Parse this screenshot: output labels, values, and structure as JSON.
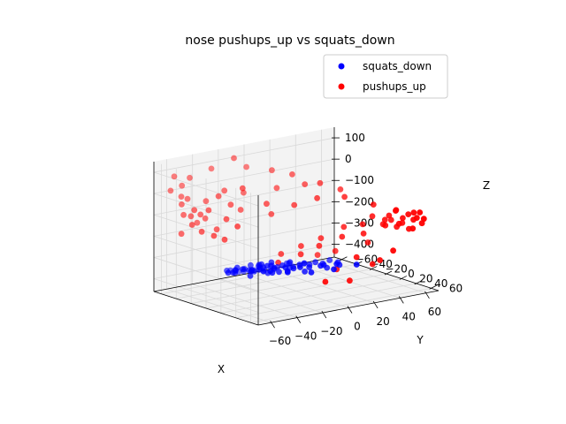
{
  "title": "nose pushups_up vs squats_down",
  "colors": {
    "squats_down": "#0000ff",
    "pushups_up": "#ff0000",
    "pane": "#f2f2f2",
    "grid": "#d9d9d9"
  },
  "chart_data": {
    "type": "scatter",
    "projection": "3d",
    "title": "nose pushups_up vs squats_down",
    "xlabel": "X",
    "ylabel": "Y",
    "zlabel": "Z",
    "xlim": [
      -70,
      70
    ],
    "ylim": [
      -70,
      70
    ],
    "zlim": [
      -460,
      150
    ],
    "xticks": [
      -60,
      -40,
      -20,
      0,
      20,
      40,
      60
    ],
    "yticks": [
      -60,
      -40,
      -20,
      0,
      20,
      40,
      60
    ],
    "zticks": [
      100,
      0,
      -100,
      -200,
      -300,
      -400
    ],
    "grid": true,
    "legend": "top-right",
    "legend_entries": [
      "squats_down",
      "pushups_up"
    ],
    "series": [
      {
        "name": "squats_down",
        "color": "#0000ff",
        "points": [
          [
            -54,
            2,
            -310
          ],
          [
            -50,
            5,
            -300
          ],
          [
            -48,
            -2,
            -320
          ],
          [
            -46,
            8,
            -295
          ],
          [
            -44,
            -6,
            -330
          ],
          [
            -42,
            12,
            -305
          ],
          [
            -40,
            -10,
            -315
          ],
          [
            -38,
            4,
            -340
          ],
          [
            -37,
            15,
            -290
          ],
          [
            -35,
            -3,
            -325
          ],
          [
            -34,
            9,
            -310
          ],
          [
            -32,
            -14,
            -335
          ],
          [
            -30,
            2,
            -300
          ],
          [
            -29,
            18,
            -320
          ],
          [
            -28,
            -8,
            -345
          ],
          [
            -26,
            6,
            -305
          ],
          [
            -25,
            -18,
            -330
          ],
          [
            -24,
            12,
            -315
          ],
          [
            -22,
            0,
            -350
          ],
          [
            -21,
            22,
            -300
          ],
          [
            -20,
            -12,
            -325
          ],
          [
            -18,
            8,
            -340
          ],
          [
            -17,
            -4,
            -310
          ],
          [
            -16,
            16,
            -330
          ],
          [
            -14,
            -20,
            -355
          ],
          [
            -13,
            4,
            -320
          ],
          [
            -12,
            26,
            -305
          ],
          [
            -10,
            -8,
            -345
          ],
          [
            -9,
            12,
            -330
          ],
          [
            -8,
            -16,
            -360
          ],
          [
            -6,
            2,
            -315
          ],
          [
            -5,
            20,
            -340
          ],
          [
            -4,
            -26,
            -365
          ],
          [
            -2,
            8,
            -325
          ],
          [
            0,
            -4,
            -350
          ],
          [
            2,
            14,
            -335
          ],
          [
            3,
            -14,
            -370
          ],
          [
            5,
            24,
            -320
          ],
          [
            6,
            -20,
            -360
          ],
          [
            8,
            4,
            -340
          ],
          [
            10,
            -30,
            -375
          ],
          [
            11,
            18,
            -330
          ],
          [
            12,
            -10,
            -355
          ],
          [
            14,
            30,
            -315
          ],
          [
            16,
            -2,
            -345
          ],
          [
            18,
            10,
            -360
          ],
          [
            20,
            -24,
            -380
          ],
          [
            22,
            20,
            -340
          ],
          [
            24,
            -6,
            -365
          ],
          [
            26,
            36,
            -325
          ],
          [
            -30,
            -30,
            -360
          ],
          [
            -20,
            -36,
            -385
          ],
          [
            -10,
            -40,
            -395
          ],
          [
            0,
            -34,
            -380
          ],
          [
            -40,
            -24,
            -345
          ],
          [
            -24,
            30,
            -310
          ],
          [
            -8,
            34,
            -325
          ],
          [
            6,
            40,
            -320
          ],
          [
            -34,
            24,
            -300
          ],
          [
            -46,
            20,
            -285
          ],
          [
            -18,
            -46,
            -400
          ],
          [
            -4,
            -44,
            -390
          ],
          [
            -28,
            -40,
            -375
          ],
          [
            30,
            4,
            -355
          ],
          [
            34,
            -14,
            -370
          ],
          [
            4,
            -50,
            -420
          ],
          [
            -44,
            32,
            -280
          ]
        ]
      },
      {
        "name": "pushups_up",
        "color": "#ff0000",
        "points": [
          [
            -64,
            -58,
            20
          ],
          [
            -60,
            -50,
            -40
          ],
          [
            -62,
            -44,
            -80
          ],
          [
            -58,
            -54,
            -10
          ],
          [
            -56,
            -40,
            -60
          ],
          [
            -54,
            -48,
            -100
          ],
          [
            -60,
            -36,
            -120
          ],
          [
            -52,
            -56,
            -30
          ],
          [
            -50,
            -42,
            -90
          ],
          [
            -48,
            -50,
            -140
          ],
          [
            -56,
            -30,
            -150
          ],
          [
            -46,
            -38,
            -70
          ],
          [
            -44,
            -46,
            -120
          ],
          [
            -50,
            -24,
            -170
          ],
          [
            -42,
            -34,
            -160
          ],
          [
            -40,
            -52,
            -50
          ],
          [
            -38,
            -28,
            -110
          ],
          [
            -36,
            -42,
            -20
          ],
          [
            -34,
            -20,
            -140
          ],
          [
            -30,
            -36,
            -60
          ],
          [
            -44,
            -20,
            -190
          ],
          [
            -28,
            -48,
            -10
          ],
          [
            -60,
            -60,
            80
          ],
          [
            -54,
            -60,
            30
          ],
          [
            -66,
            -40,
            -160
          ],
          [
            -20,
            -40,
            -100
          ],
          [
            -12,
            -50,
            -40
          ],
          [
            -2,
            -30,
            -130
          ],
          [
            10,
            -20,
            -90
          ],
          [
            22,
            -10,
            -60
          ],
          [
            34,
            6,
            -50
          ],
          [
            46,
            24,
            -80
          ],
          [
            54,
            40,
            -100
          ],
          [
            58,
            50,
            -110
          ],
          [
            52,
            44,
            -90
          ],
          [
            50,
            38,
            -120
          ],
          [
            56,
            46,
            -130
          ],
          [
            60,
            54,
            -100
          ],
          [
            48,
            36,
            -140
          ],
          [
            54,
            34,
            -150
          ],
          [
            58,
            42,
            -160
          ],
          [
            62,
            50,
            -140
          ],
          [
            50,
            30,
            -170
          ],
          [
            56,
            38,
            -180
          ],
          [
            44,
            26,
            -130
          ],
          [
            60,
            58,
            -120
          ],
          [
            52,
            48,
            -150
          ],
          [
            46,
            40,
            -160
          ],
          [
            58,
            56,
            -170
          ],
          [
            62,
            44,
            -190
          ],
          [
            40,
            20,
            -170
          ],
          [
            36,
            28,
            -200
          ],
          [
            30,
            12,
            -180
          ],
          [
            24,
            20,
            -210
          ],
          [
            18,
            2,
            -230
          ],
          [
            12,
            10,
            -250
          ],
          [
            6,
            -4,
            -260
          ],
          [
            0,
            6,
            -280
          ],
          [
            -6,
            -10,
            -290
          ],
          [
            -14,
            0,
            -310
          ],
          [
            20,
            -6,
            -320
          ],
          [
            28,
            4,
            -300
          ],
          [
            14,
            30,
            -340
          ],
          [
            36,
            40,
            -330
          ],
          [
            44,
            20,
            -260
          ],
          [
            62,
            64,
            -120
          ],
          [
            64,
            58,
            -150
          ],
          [
            60,
            62,
            -90
          ],
          [
            -48,
            -60,
            60
          ],
          [
            -22,
            -34,
            10
          ],
          [
            -4,
            -60,
            60
          ],
          [
            10,
            -50,
            40
          ],
          [
            20,
            -40,
            20
          ],
          [
            -30,
            -62,
            80
          ],
          [
            -16,
            -56,
            120
          ],
          [
            24,
            -30,
            -20
          ],
          [
            40,
            -10,
            -40
          ],
          [
            30,
            -20,
            -10
          ],
          [
            8,
            -40,
            -30
          ],
          [
            -8,
            -26,
            -70
          ],
          [
            26,
            36,
            -290
          ],
          [
            36,
            50,
            -300
          ],
          [
            44,
            54,
            -260
          ],
          [
            16,
            44,
            -380
          ],
          [
            -4,
            46,
            -360
          ]
        ]
      }
    ]
  }
}
